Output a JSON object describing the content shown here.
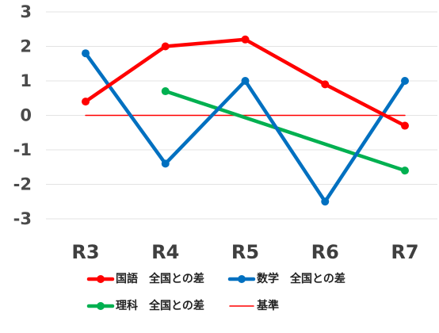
{
  "chart_data": {
    "type": "line",
    "title": "",
    "xlabel": "",
    "ylabel": "",
    "categories": [
      "R3",
      "R4",
      "R5",
      "R6",
      "R7"
    ],
    "ylim": [
      -3,
      3
    ],
    "yticks": [
      "3",
      "2",
      "1",
      "0",
      "-1",
      "-2",
      "-3"
    ],
    "grid": true,
    "legend_position": "bottom",
    "series": [
      {
        "name": "国語　全国との差",
        "color": "#ff0000",
        "values": [
          0.4,
          2.0,
          2.2,
          0.9,
          -0.3
        ],
        "markers": true
      },
      {
        "name": "数学　全国との差",
        "color": "#0070c0",
        "values": [
          1.8,
          -1.4,
          1.0,
          -2.5,
          1.0
        ],
        "markers": true
      },
      {
        "name": "理科　全国との差",
        "color": "#00b050",
        "values": [
          null,
          0.7,
          null,
          null,
          -1.6
        ],
        "markers": true
      },
      {
        "name": "基準",
        "color": "#ff0000",
        "values": [
          0,
          0,
          0,
          0,
          0
        ],
        "markers": false
      }
    ]
  }
}
